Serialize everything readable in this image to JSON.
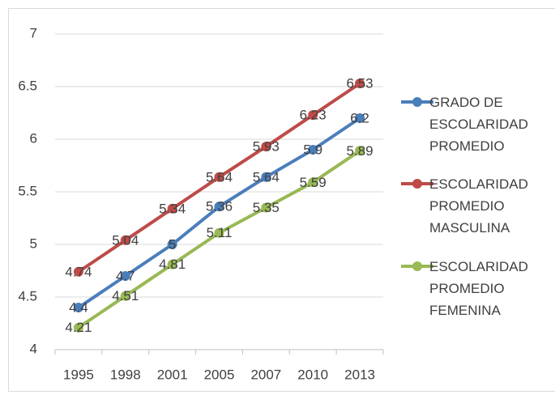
{
  "chart_data": {
    "type": "line",
    "categories": [
      "1995",
      "1998",
      "2001",
      "2005",
      "2007",
      "2010",
      "2013"
    ],
    "series": [
      {
        "name": "GRADO DE ESCOLARIDAD PROMEDIO",
        "color": "#4a7ebb",
        "values": [
          4.4,
          4.7,
          5,
          5.36,
          5.64,
          5.9,
          6.2
        ]
      },
      {
        "name": "ESCOLARIDAD PROMEDIO MASCULINA",
        "color": "#be4b48",
        "values": [
          4.74,
          5.04,
          5.34,
          5.64,
          5.93,
          6.23,
          6.53
        ]
      },
      {
        "name": "ESCOLARIDAD PROMEDIO FEMENINA",
        "color": "#98b954",
        "values": [
          4.21,
          4.51,
          4.81,
          5.11,
          5.35,
          5.59,
          5.89
        ]
      }
    ],
    "ylim": [
      4,
      7
    ],
    "yticks": [
      4,
      4.5,
      5,
      5.5,
      6,
      6.5,
      7
    ],
    "grid": true,
    "legend": "right"
  }
}
